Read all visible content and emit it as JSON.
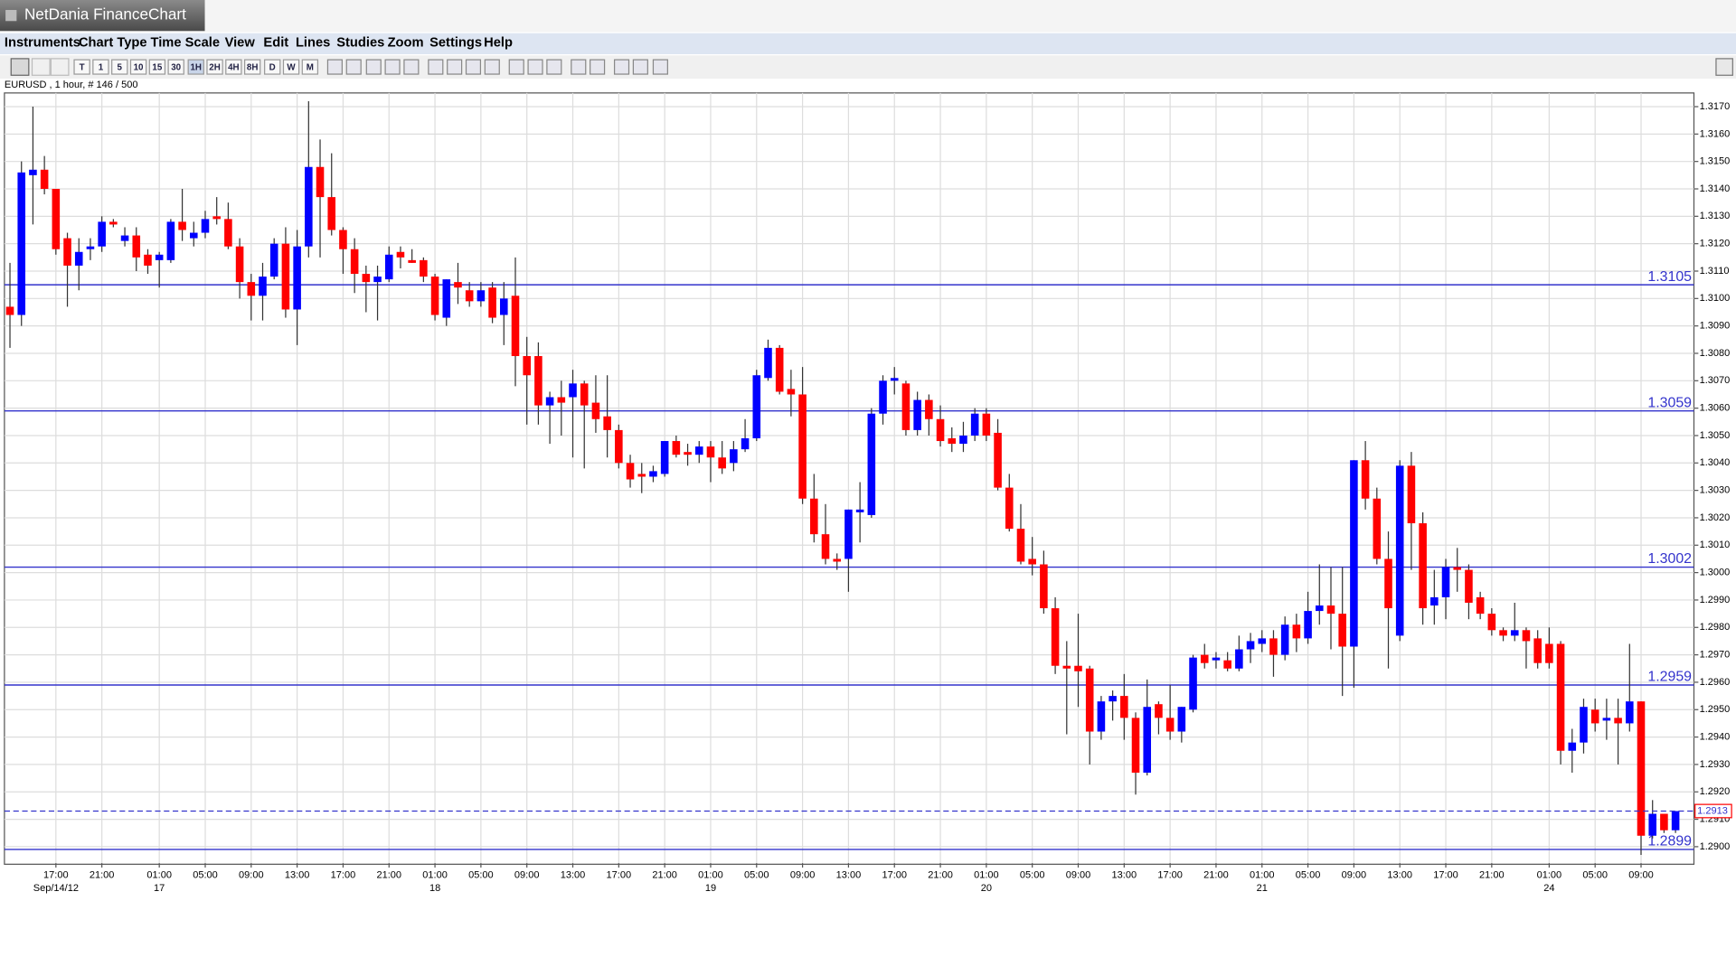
{
  "window": {
    "title": "NetDania FinanceChart"
  },
  "menu": [
    "Instruments",
    "Chart Type",
    "Time Scale",
    "View",
    "Edit",
    "Lines",
    "Studies",
    "Zoom",
    "Settings",
    "Help"
  ],
  "toolbar": [
    "T",
    "1",
    "5",
    "10",
    "15",
    "30",
    "1H",
    "2H",
    "4H",
    "8H",
    "D",
    "W",
    "M"
  ],
  "chart_data": {
    "type": "candlestick",
    "subtitle": "EURUSD , 1 hour, # 146 / 500",
    "up_color": "#0000ff",
    "down_color": "#ff0000",
    "wick_color": "#333333",
    "grid": true,
    "hline_color": "#3333cc",
    "categories": [
      null,
      null,
      null,
      null,
      "17:00",
      null,
      null,
      null,
      "21:00",
      null,
      null,
      null,
      null,
      "01:00",
      null,
      null,
      null,
      "05:00",
      null,
      null,
      null,
      "09:00",
      null,
      null,
      null,
      "13:00",
      null,
      null,
      null,
      "17:00",
      null,
      null,
      null,
      "21:00",
      null,
      null,
      null,
      "01:00",
      null,
      null,
      null,
      "05:00",
      null,
      null,
      null,
      "09:00",
      null,
      null,
      null,
      "13:00",
      null,
      null,
      null,
      "17:00",
      null,
      null,
      null,
      "21:00",
      null,
      null,
      null,
      "01:00",
      null,
      null,
      null,
      "05:00",
      null,
      null,
      null,
      "09:00",
      null,
      null,
      null,
      "13:00",
      null,
      null,
      null,
      "17:00",
      null,
      null,
      null,
      "21:00",
      null,
      null,
      null,
      "01:00",
      null,
      null,
      null,
      "05:00",
      null,
      null,
      null,
      "09:00",
      null,
      null,
      null,
      "13:00",
      null,
      null,
      null,
      "17:00",
      null,
      null,
      null,
      "21:00",
      null,
      null,
      null,
      "01:00",
      null,
      null,
      null,
      "05:00",
      null,
      null,
      null,
      "09:00",
      null,
      null,
      null,
      "13:00",
      null,
      null,
      null,
      "17:00",
      null,
      null,
      null,
      "21:00",
      null,
      null,
      null,
      null,
      "01:00",
      null,
      null,
      null,
      "05:00",
      null,
      null,
      null,
      "09:00",
      null,
      null,
      null
    ],
    "dates": [
      null,
      null,
      null,
      null,
      "Sep/14/12",
      null,
      null,
      null,
      null,
      null,
      null,
      null,
      null,
      "17",
      null,
      null,
      null,
      null,
      null,
      null,
      null,
      null,
      null,
      null,
      null,
      null,
      null,
      null,
      null,
      null,
      null,
      null,
      null,
      null,
      null,
      null,
      null,
      "18",
      null,
      null,
      null,
      null,
      null,
      null,
      null,
      null,
      null,
      null,
      null,
      null,
      null,
      null,
      null,
      null,
      null,
      null,
      null,
      null,
      null,
      null,
      null,
      "19",
      null,
      null,
      null,
      null,
      null,
      null,
      null,
      null,
      null,
      null,
      null,
      null,
      null,
      null,
      null,
      null,
      null,
      null,
      null,
      null,
      null,
      null,
      null,
      "20",
      null,
      null,
      null,
      null,
      null,
      null,
      null,
      null,
      null,
      null,
      null,
      null,
      null,
      null,
      null,
      null,
      null,
      null,
      null,
      null,
      null,
      null,
      null,
      "21",
      null,
      null,
      null,
      null,
      null,
      null,
      null,
      null,
      null,
      null,
      null,
      null,
      null,
      null,
      null,
      null,
      null,
      null,
      null,
      null,
      null,
      null,
      null,
      null,
      "24",
      null,
      null,
      null,
      null,
      null,
      null,
      null,
      null,
      null,
      null,
      null
    ],
    "open": [
      1.3097,
      1.3094,
      1.3145,
      1.3147,
      1.314,
      1.3122,
      1.3112,
      1.3118,
      1.3119,
      1.3128,
      1.3121,
      1.3123,
      1.3116,
      1.3114,
      1.3114,
      1.3128,
      1.3122,
      1.3124,
      1.313,
      1.3129,
      1.3119,
      1.3106,
      1.3101,
      1.3108,
      1.312,
      1.3096,
      1.3119,
      1.3148,
      1.3137,
      1.3125,
      1.3118,
      1.3109,
      1.3106,
      1.3107,
      1.3117,
      1.3114,
      1.3114,
      1.3108,
      1.3093,
      1.3106,
      1.3103,
      1.3099,
      1.3104,
      1.3094,
      1.3101,
      1.3079,
      1.3079,
      1.3061,
      1.3064,
      1.3064,
      1.3069,
      1.3062,
      1.3057,
      1.3052,
      1.304,
      1.3036,
      1.3035,
      1.3036,
      1.3048,
      1.3044,
      1.3043,
      1.3046,
      1.3042,
      1.304,
      1.3045,
      1.3049,
      1.3071,
      1.3082,
      1.3067,
      1.3065,
      1.3027,
      1.3014,
      1.3005,
      1.3005,
      1.3022,
      1.3021,
      1.3058,
      1.307,
      1.3069,
      1.3052,
      1.3063,
      1.3056,
      1.3049,
      1.3047,
      1.305,
      1.3058,
      1.3051,
      1.3031,
      1.3016,
      1.3005,
      1.3003,
      1.2987,
      1.2966,
      1.2966,
      1.2965,
      1.2942,
      1.2953,
      1.2955,
      1.2947,
      1.2927,
      1.2952,
      1.2947,
      1.2942,
      1.295,
      1.297,
      1.2968,
      1.2968,
      1.2965,
      1.2972,
      1.2974,
      1.2976,
      1.297,
      1.2981,
      1.2976,
      1.2986,
      1.2988,
      1.2985,
      1.2973,
      1.3041,
      1.3027,
      1.3005,
      1.2977,
      1.3039,
      1.3018,
      1.2988,
      1.2991,
      1.3002,
      1.3001,
      1.2991,
      1.2985,
      1.2979,
      1.2977,
      1.2979,
      1.2976,
      1.2974,
      1.2974,
      1.2935,
      1.2938,
      1.295,
      1.2946,
      1.2947,
      1.2945,
      1.2953,
      1.2904,
      1.2912,
      1.2906
    ],
    "high": [
      1.3113,
      1.315,
      1.317,
      1.3152,
      1.314,
      1.3124,
      1.3122,
      1.3122,
      1.313,
      1.3129,
      1.3126,
      1.3126,
      1.3118,
      1.3117,
      1.3129,
      1.314,
      1.3128,
      1.3132,
      1.3137,
      1.3135,
      1.3122,
      1.3109,
      1.3113,
      1.3122,
      1.3126,
      1.3125,
      1.3172,
      1.3158,
      1.3153,
      1.3126,
      1.3122,
      1.3112,
      1.3112,
      1.3119,
      1.3119,
      1.3118,
      1.3115,
      1.3109,
      1.3107,
      1.3113,
      1.3106,
      1.3106,
      1.3106,
      1.3106,
      1.3115,
      1.3086,
      1.3084,
      1.3066,
      1.307,
      1.3074,
      1.307,
      1.3072,
      1.3072,
      1.3054,
      1.3043,
      1.304,
      1.3039,
      1.3048,
      1.305,
      1.3047,
      1.3048,
      1.3048,
      1.3048,
      1.3048,
      1.3056,
      1.3074,
      1.3085,
      1.3083,
      1.3074,
      1.3075,
      1.3036,
      1.3025,
      1.3007,
      1.3023,
      1.3033,
      1.306,
      1.3072,
      1.3075,
      1.307,
      1.3066,
      1.3065,
      1.3061,
      1.3053,
      1.3055,
      1.306,
      1.306,
      1.3056,
      1.3036,
      1.3025,
      1.3013,
      1.3008,
      1.2991,
      1.2975,
      1.2985,
      1.2966,
      1.2955,
      1.2957,
      1.2963,
      1.2949,
      1.2961,
      1.2953,
      1.2959,
      1.2951,
      1.297,
      1.2974,
      1.2971,
      1.2971,
      1.2977,
      1.2978,
      1.2979,
      1.2979,
      1.2984,
      1.2985,
      1.2993,
      1.3003,
      1.3002,
      1.3002,
      1.3041,
      1.3048,
      1.3031,
      1.3015,
      1.3041,
      1.3044,
      1.3022,
      1.3001,
      1.3005,
      1.3009,
      1.3003,
      1.2993,
      1.2987,
      1.298,
      1.2989,
      1.298,
      1.2979,
      1.298,
      1.2975,
      1.2943,
      1.2954,
      1.2954,
      1.2954,
      1.2954,
      1.2974,
      1.2953,
      1.2917,
      1.2912,
      1.2913
    ],
    "low": [
      1.3082,
      1.309,
      1.3127,
      1.3138,
      1.3116,
      1.3097,
      1.3103,
      1.3114,
      1.3117,
      1.3126,
      1.3119,
      1.311,
      1.3109,
      1.3104,
      1.3113,
      1.3121,
      1.3119,
      1.3122,
      1.3127,
      1.3118,
      1.31,
      1.3092,
      1.3092,
      1.3107,
      1.3093,
      1.3083,
      1.3115,
      1.3115,
      1.3123,
      1.3109,
      1.3102,
      1.3095,
      1.3092,
      1.3106,
      1.3111,
      1.3113,
      1.3106,
      1.3092,
      1.309,
      1.3098,
      1.3097,
      1.3097,
      1.3091,
      1.3083,
      1.3068,
      1.3054,
      1.3054,
      1.3047,
      1.305,
      1.3042,
      1.3038,
      1.3051,
      1.3042,
      1.3038,
      1.3031,
      1.3029,
      1.3033,
      1.3035,
      1.3042,
      1.3039,
      1.304,
      1.3033,
      1.3036,
      1.3037,
      1.3044,
      1.3048,
      1.307,
      1.3065,
      1.3057,
      1.3025,
      1.3011,
      1.3003,
      1.3001,
      1.2993,
      1.3011,
      1.302,
      1.3054,
      1.3065,
      1.305,
      1.305,
      1.305,
      1.3046,
      1.3044,
      1.3044,
      1.3048,
      1.3048,
      1.303,
      1.3015,
      1.3003,
      1.2999,
      1.2985,
      1.2963,
      1.2941,
      1.2951,
      1.293,
      1.2939,
      1.2946,
      1.2939,
      1.2919,
      1.2926,
      1.2941,
      1.2939,
      1.2938,
      1.2949,
      1.2965,
      1.2965,
      1.2964,
      1.2964,
      1.2967,
      1.2971,
      1.2962,
      1.2968,
      1.2971,
      1.2974,
      1.2981,
      1.2972,
      1.2955,
      1.2958,
      1.3023,
      1.3003,
      1.2965,
      1.2975,
      1.3001,
      1.2981,
      1.2981,
      1.2983,
      1.2993,
      1.2983,
      1.2983,
      1.2977,
      1.2975,
      1.2975,
      1.2965,
      1.2965,
      1.2965,
      1.293,
      1.2927,
      1.2934,
      1.2942,
      1.2939,
      1.293,
      1.2942,
      1.2897,
      1.2903,
      1.2905,
      1.2905
    ],
    "close": [
      1.3094,
      1.3146,
      1.3147,
      1.314,
      1.3118,
      1.3112,
      1.3117,
      1.3119,
      1.3128,
      1.3127,
      1.3123,
      1.3115,
      1.3112,
      1.3116,
      1.3128,
      1.3125,
      1.3124,
      1.3129,
      1.3129,
      1.3119,
      1.3106,
      1.3101,
      1.3108,
      1.312,
      1.3096,
      1.3119,
      1.3148,
      1.3137,
      1.3125,
      1.3118,
      1.3109,
      1.3106,
      1.3108,
      1.3116,
      1.3115,
      1.3113,
      1.3108,
      1.3094,
      1.3107,
      1.3104,
      1.3099,
      1.3103,
      1.3093,
      1.31,
      1.3079,
      1.3072,
      1.3061,
      1.3064,
      1.3062,
      1.3069,
      1.3061,
      1.3056,
      1.3052,
      1.304,
      1.3034,
      1.3035,
      1.3037,
      1.3048,
      1.3043,
      1.3043,
      1.3046,
      1.3042,
      1.3038,
      1.3045,
      1.3049,
      1.3072,
      1.3082,
      1.3066,
      1.3065,
      1.3027,
      1.3014,
      1.3005,
      1.3004,
      1.3023,
      1.3023,
      1.3058,
      1.307,
      1.3071,
      1.3052,
      1.3063,
      1.3056,
      1.3048,
      1.3047,
      1.305,
      1.3058,
      1.305,
      1.3031,
      1.3016,
      1.3004,
      1.3003,
      1.2987,
      1.2966,
      1.2965,
      1.2964,
      1.2942,
      1.2953,
      1.2955,
      1.2947,
      1.2927,
      1.2951,
      1.2947,
      1.2942,
      1.2951,
      1.2969,
      1.2967,
      1.2969,
      1.2965,
      1.2972,
      1.2975,
      1.2976,
      1.297,
      1.2981,
      1.2976,
      1.2986,
      1.2988,
      1.2985,
      1.2973,
      1.3041,
      1.3027,
      1.3005,
      1.2987,
      1.3039,
      1.3018,
      1.2987,
      1.2991,
      1.3002,
      1.3001,
      1.2989,
      1.2985,
      1.2979,
      1.2977,
      1.2979,
      1.2975,
      1.2967,
      1.2967,
      1.2935,
      1.2938,
      1.2951,
      1.2945,
      1.2947,
      1.2945,
      1.2953,
      1.2904,
      1.2912,
      1.2906,
      1.2913
    ],
    "hlines": [
      1.3105,
      1.3059,
      1.3002,
      1.2959,
      1.2899
    ],
    "last": 1.2913,
    "ylim": [
      1.2894,
      1.3175
    ],
    "yticks": [
      {
        "value": 1.29,
        "label": "1.2900"
      },
      {
        "value": 1.291,
        "label": "1.2910"
      },
      {
        "value": 1.292,
        "label": "1.2920"
      },
      {
        "value": 1.293,
        "label": "1.2930"
      },
      {
        "value": 1.294,
        "label": "1.2940"
      },
      {
        "value": 1.295,
        "label": "1.2950"
      },
      {
        "value": 1.296,
        "label": "1.2960"
      },
      {
        "value": 1.297,
        "label": "1.2970"
      },
      {
        "value": 1.298,
        "label": "1.2980"
      },
      {
        "value": 1.299,
        "label": "1.2990"
      },
      {
        "value": 1.3,
        "label": "1.3000"
      },
      {
        "value": 1.301,
        "label": "1.3010"
      },
      {
        "value": 1.302,
        "label": "1.3020"
      },
      {
        "value": 1.303,
        "label": "1.3030"
      },
      {
        "value": 1.304,
        "label": "1.3040"
      },
      {
        "value": 1.305,
        "label": "1.3050"
      },
      {
        "value": 1.306,
        "label": "1.3060"
      },
      {
        "value": 1.307,
        "label": "1.3070"
      },
      {
        "value": 1.308,
        "label": "1.3080"
      },
      {
        "value": 1.309,
        "label": "1.3090"
      },
      {
        "value": 1.31,
        "label": "1.3100"
      },
      {
        "value": 1.311,
        "label": "1.3110"
      },
      {
        "value": 1.312,
        "label": "1.3120"
      },
      {
        "value": 1.313,
        "label": "1.3130"
      },
      {
        "value": 1.314,
        "label": "1.3140"
      },
      {
        "value": 1.315,
        "label": "1.3150"
      },
      {
        "value": 1.316,
        "label": "1.3160"
      },
      {
        "value": 1.317,
        "label": "1.3170"
      }
    ]
  }
}
